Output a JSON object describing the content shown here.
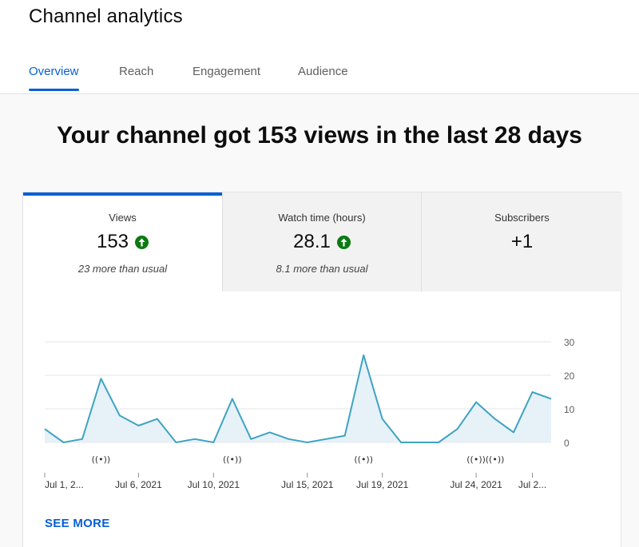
{
  "header": {
    "title": "Channel analytics"
  },
  "tabs": [
    {
      "label": "Overview",
      "active": true
    },
    {
      "label": "Reach",
      "active": false
    },
    {
      "label": "Engagement",
      "active": false
    },
    {
      "label": "Audience",
      "active": false
    }
  ],
  "headline": "Your channel got 153 views in the last 28 days",
  "metrics": [
    {
      "label": "Views",
      "value": "153",
      "trend": "up",
      "note": "23 more than usual"
    },
    {
      "label": "Watch time (hours)",
      "value": "28.1",
      "trend": "up",
      "note": "8.1 more than usual"
    },
    {
      "label": "Subscribers",
      "value": "+1",
      "trend": "",
      "note": ""
    }
  ],
  "colors": {
    "accent": "#065fd4",
    "line": "#3ea3c2",
    "area": "#e6f1f8",
    "up": "#0b7a13"
  },
  "chart_data": {
    "type": "area",
    "series": [
      {
        "values": [
          4,
          0,
          1,
          19,
          8,
          5,
          7,
          0,
          1,
          0,
          13,
          1,
          3,
          1,
          0,
          1,
          2,
          26,
          7,
          0,
          0,
          0,
          4,
          12,
          7,
          3,
          15,
          13
        ]
      }
    ],
    "ylim": [
      0,
      30
    ],
    "yticks": [
      "30",
      "20",
      "10",
      "0"
    ],
    "xticks": [
      {
        "label": "Jul 1, 2...",
        "index": 0
      },
      {
        "label": "Jul 6, 2021",
        "index": 5
      },
      {
        "label": "Jul 10, 2021",
        "index": 9
      },
      {
        "label": "Jul 15, 2021",
        "index": 14
      },
      {
        "label": "Jul 19, 2021",
        "index": 18
      },
      {
        "label": "Jul 24, 2021",
        "index": 23
      },
      {
        "label": "Jul 2...",
        "index": 26
      }
    ],
    "live_markers": [
      3,
      10,
      17,
      23,
      24
    ],
    "live_icon": "live-stream-icon",
    "grid": true
  },
  "see_more": "SEE MORE"
}
